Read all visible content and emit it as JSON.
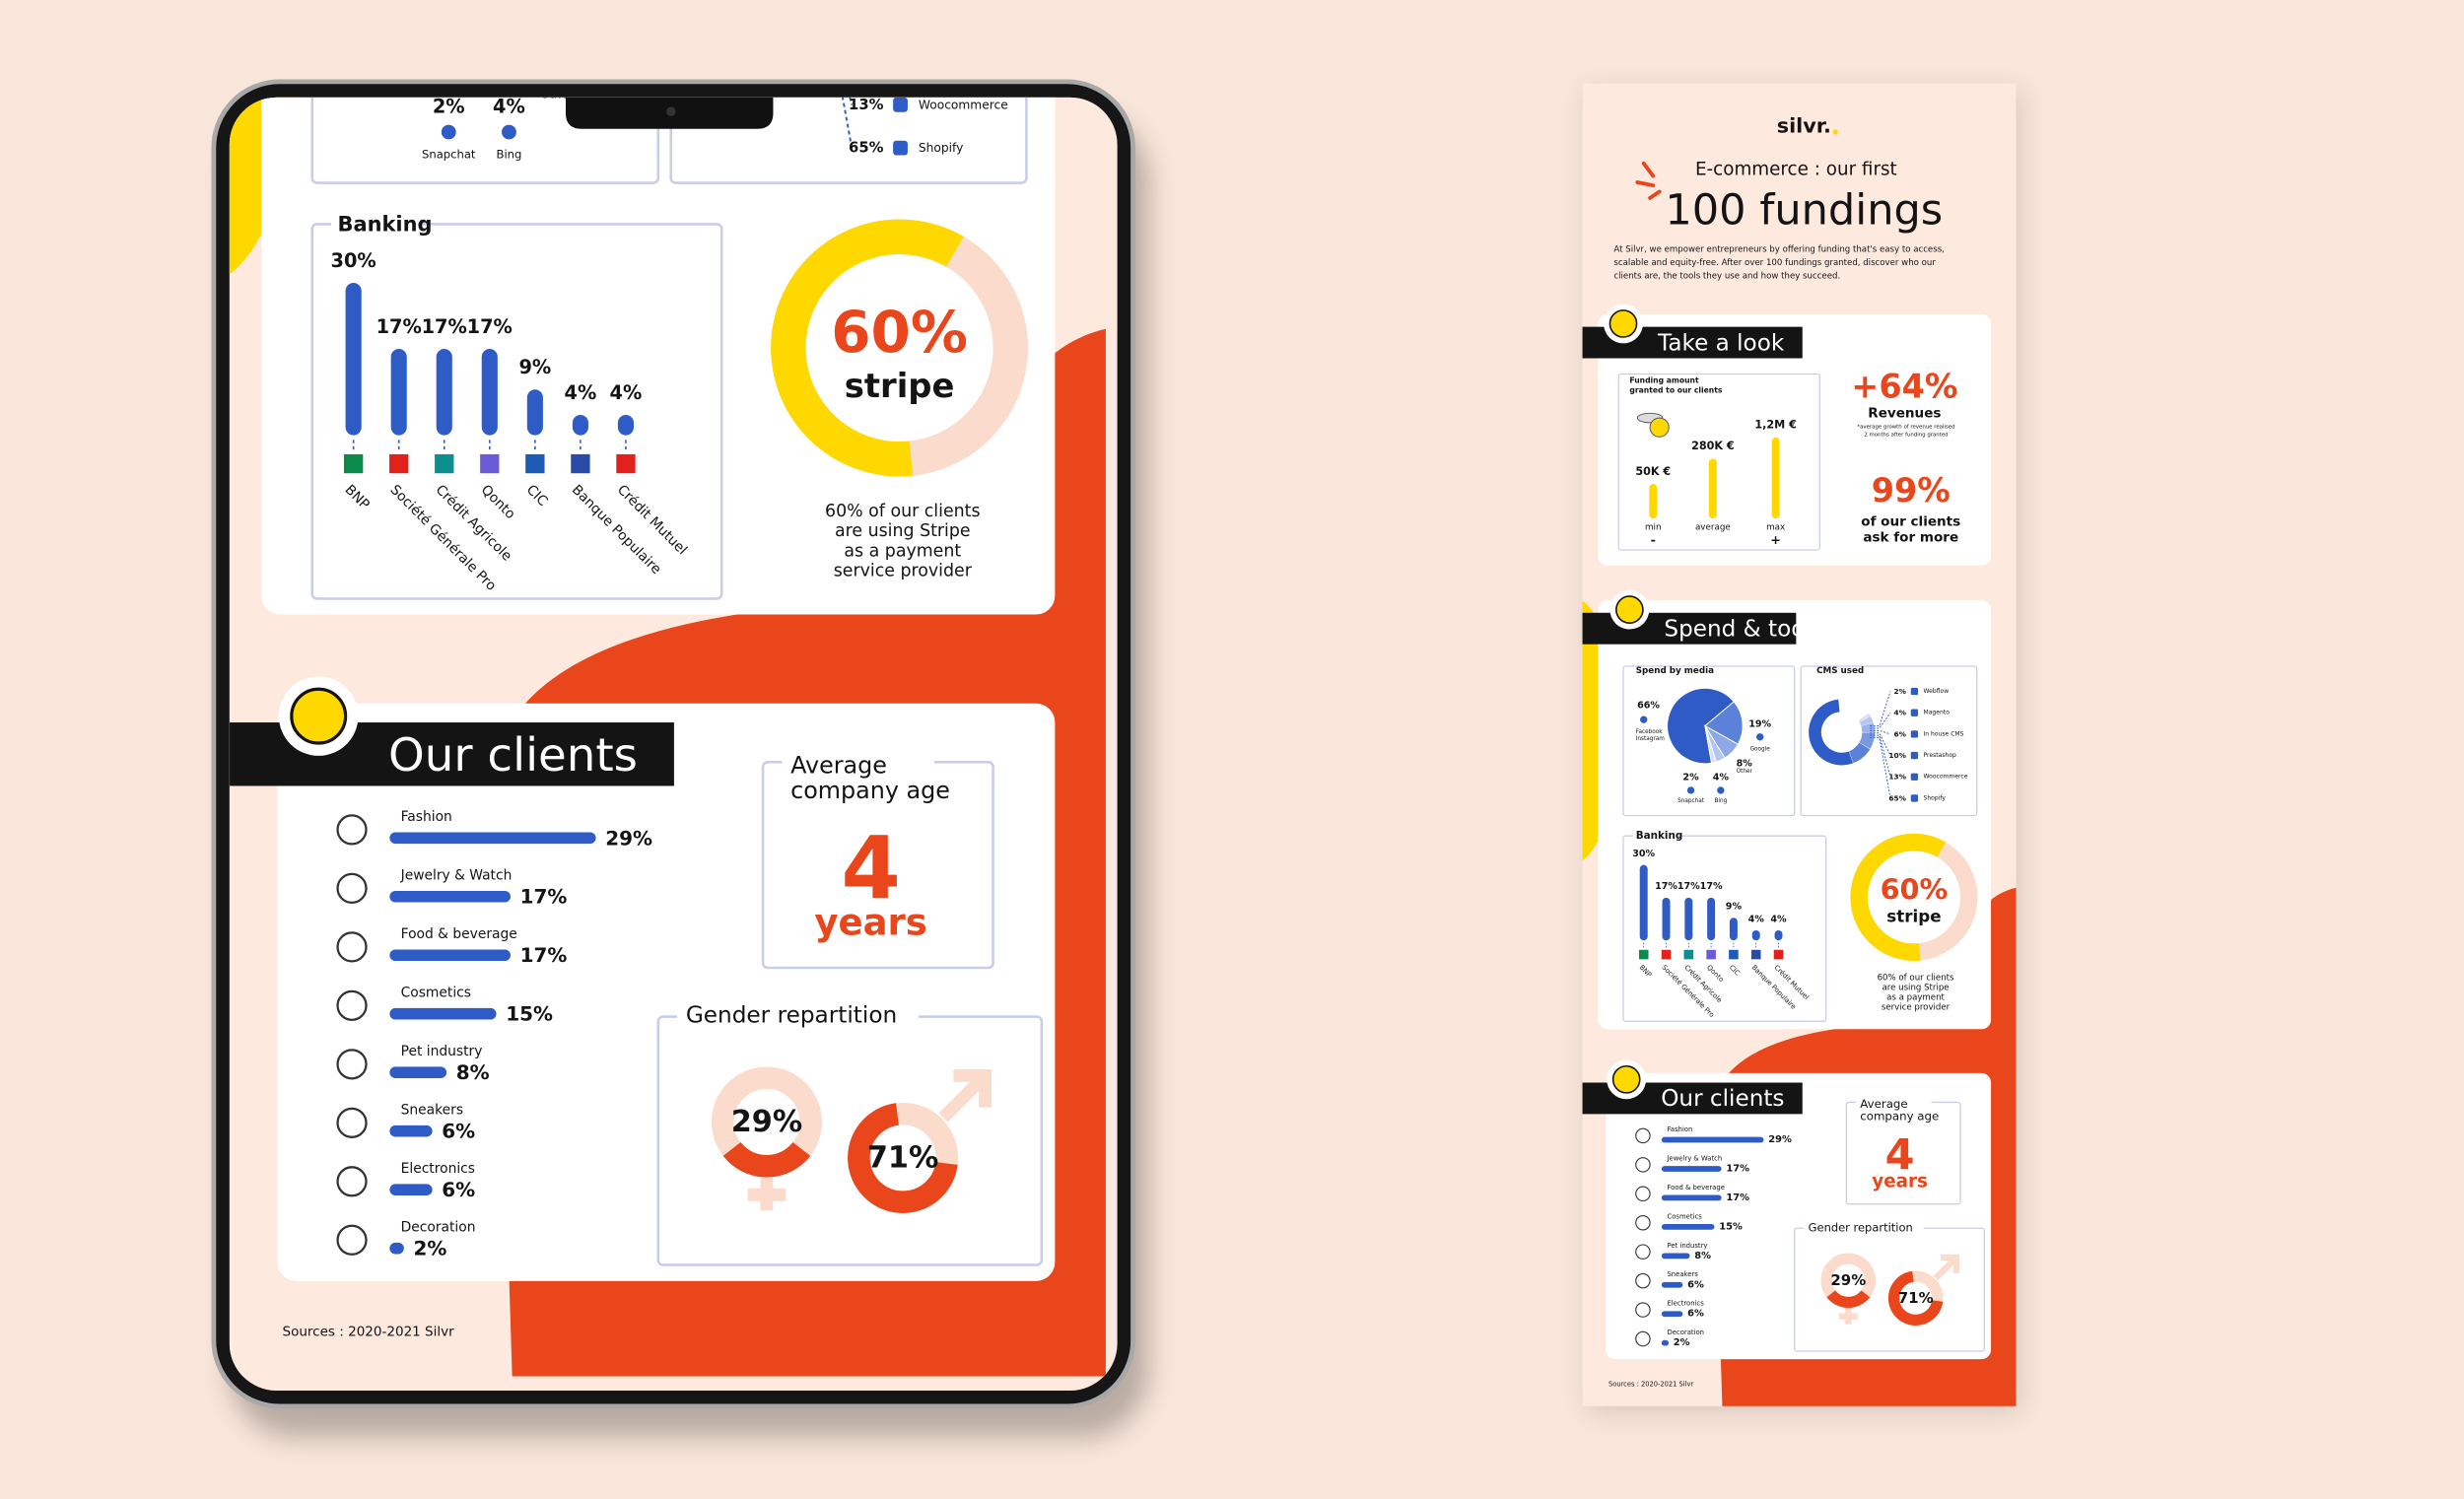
{
  "palette": {
    "blue": "#2e5bc5",
    "orange": "#e9461c",
    "yellow": "#ffd800",
    "peach": "#fde9de",
    "light": "#fbdccc",
    "ink": "#141414",
    "line": "#c9cde8"
  },
  "logo": "silvr.",
  "header": {
    "kicker": "E-commerce : our first",
    "title": "100 fundings",
    "intro": [
      "At Silvr, we empower entrepreneurs by offering funding that's easy to access,",
      "scalable and equity-free. After over 100 fundings granted, discover who our",
      "clients are, the tools they use and how they succeed."
    ]
  },
  "take_a_look": {
    "title": "Take a look",
    "funding": {
      "title": [
        "Funding amount",
        "granted to our clients"
      ],
      "scale": "log",
      "items": [
        {
          "name": "min",
          "sign": "-",
          "value": 50000,
          "label": "50K €"
        },
        {
          "name": "average",
          "value": 280000,
          "label": "280K €"
        },
        {
          "name": "max",
          "sign": "+",
          "value": 1200000,
          "label": "1,2M €"
        }
      ]
    },
    "revenues": {
      "value": "+64%",
      "label": "Revenues",
      "note": [
        "*average growth of revenue realised",
        "2 months after funding granted"
      ]
    },
    "satisfaction": {
      "value": "99%",
      "label": [
        "of our clients",
        "ask for more"
      ]
    }
  },
  "spend_tools": {
    "title": "Spend & tools",
    "media": {
      "title": "Spend by media",
      "slices": [
        {
          "name": [
            "Facebook",
            "Instagram"
          ],
          "value": 66,
          "label": "66%",
          "color": "#2e5bc5"
        },
        {
          "name": [
            "Google"
          ],
          "value": 19,
          "label": "19%",
          "color": "#5b82d8"
        },
        {
          "name": [
            "Other"
          ],
          "value": 8,
          "label": "8%",
          "color": "#8ca8e6"
        },
        {
          "name": [
            "Bing"
          ],
          "value": 4,
          "label": "4%",
          "color": "#b3c6f0"
        },
        {
          "name": [
            "Snapchat"
          ],
          "value": 2,
          "label": "2%",
          "color": "#d6e1f7"
        }
      ]
    },
    "cms": {
      "title": "CMS used",
      "items": [
        {
          "name": "Webflow",
          "value": 2,
          "label": "2%",
          "color": "#d6e1f7"
        },
        {
          "name": "Magento",
          "value": 4,
          "label": "4%",
          "color": "#b3c6f0"
        },
        {
          "name": "In house CMS",
          "value": 6,
          "label": "6%",
          "color": "#9bb3ea"
        },
        {
          "name": "Prestashop",
          "value": 10,
          "label": "10%",
          "color": "#7a98df"
        },
        {
          "name": "Woocommerce",
          "value": 13,
          "label": "13%",
          "color": "#5b82d8"
        },
        {
          "name": "Shopify",
          "value": 65,
          "label": "65%",
          "color": "#2e5bc5"
        }
      ]
    },
    "banking": {
      "title": "Banking",
      "items": [
        {
          "name": "BNP",
          "value": 30,
          "label": "30%",
          "logo": "#0b8a4b"
        },
        {
          "name": "Société Générale Pro",
          "value": 17,
          "label": "17%",
          "logo": "#e2211c"
        },
        {
          "name": "Crédit Agricole",
          "value": 17,
          "label": "17%",
          "logo": "#0b8f8f"
        },
        {
          "name": "Qonto",
          "value": 17,
          "label": "17%",
          "logo": "#6b5bd6"
        },
        {
          "name": "CIC",
          "value": 9,
          "label": "9%",
          "logo": "#1d5bb5"
        },
        {
          "name": "Banque Populaire",
          "value": 4,
          "label": "4%",
          "logo": "#2a4aa8"
        },
        {
          "name": "Crédit Mutuel",
          "value": 4,
          "label": "4%",
          "logo": "#e2211c"
        }
      ]
    },
    "stripe": {
      "value": 60,
      "label": "60%",
      "brand": "stripe",
      "caption": [
        "60% of our clients",
        "are using Stripe",
        "as a payment",
        "service provider"
      ]
    }
  },
  "clients": {
    "title": "Our clients",
    "sectors": [
      {
        "name": "Fashion",
        "value": 29,
        "label": "29%"
      },
      {
        "name": "Jewelry & Watch",
        "value": 17,
        "label": "17%"
      },
      {
        "name": "Food & beverage",
        "value": 17,
        "label": "17%"
      },
      {
        "name": "Cosmetics",
        "value": 15,
        "label": "15%"
      },
      {
        "name": "Pet industry",
        "value": 8,
        "label": "8%"
      },
      {
        "name": "Sneakers",
        "value": 6,
        "label": "6%"
      },
      {
        "name": "Electronics",
        "value": 6,
        "label": "6%"
      },
      {
        "name": "Decoration",
        "value": 2,
        "label": "2%"
      }
    ],
    "age": {
      "title": [
        "Average",
        "company age"
      ],
      "value": "4",
      "unit": "years"
    },
    "gender": {
      "title": "Gender repartition",
      "female": {
        "value": 29,
        "label": "29%"
      },
      "male": {
        "value": 71,
        "label": "71%"
      }
    }
  },
  "sources": "Sources : 2020-2021 Silvr"
}
